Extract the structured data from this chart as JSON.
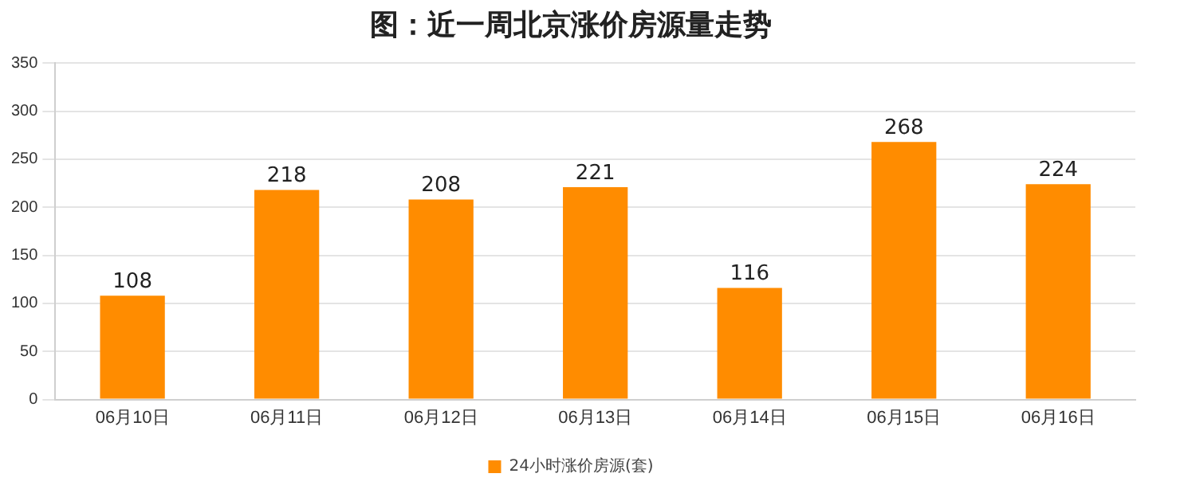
{
  "chart_data": {
    "type": "bar",
    "title": "图：近一周北京涨价房源量走势",
    "categories": [
      "06月10日",
      "06月11日",
      "06月12日",
      "06月13日",
      "06月14日",
      "06月15日",
      "06月16日"
    ],
    "series": [
      {
        "name": "24小时涨价房源(套)",
        "color": "#ff8c00",
        "values": [
          108,
          218,
          208,
          221,
          116,
          268,
          224
        ]
      }
    ],
    "ylim": [
      0,
      350
    ],
    "yticks": [
      0,
      50,
      100,
      150,
      200,
      250,
      300,
      350
    ],
    "grid": "y",
    "legend": "bottom",
    "data_labels": true
  }
}
